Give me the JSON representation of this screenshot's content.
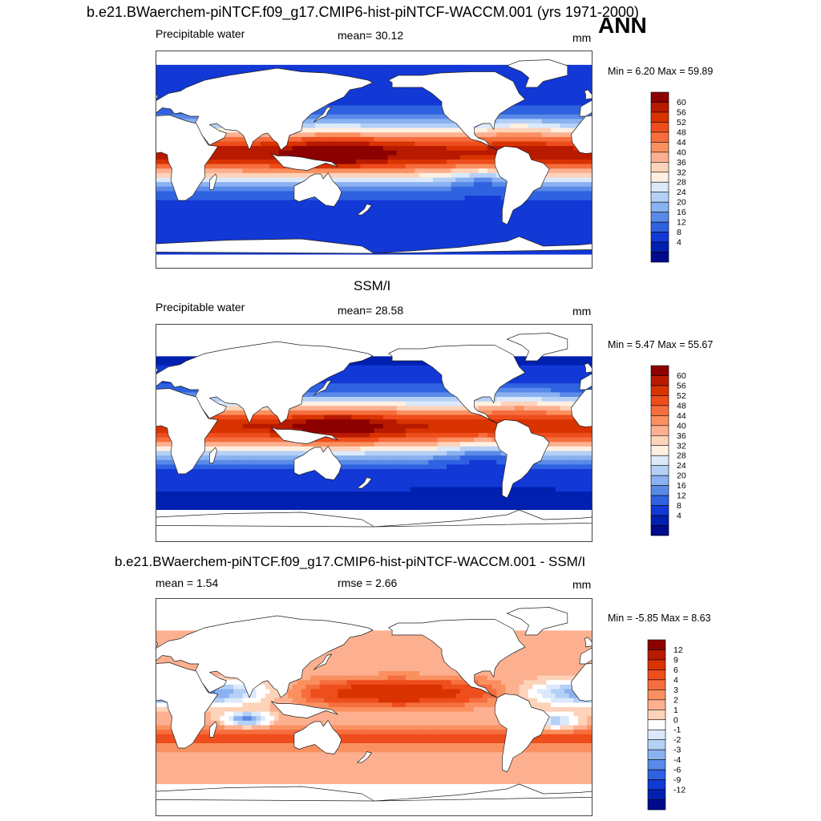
{
  "figure": {
    "title": "b.e21.BWaerchem-piNTCF.f09_g17.CMIP6-hist-piNTCF-WACCM.001 (yrs 1971-2000)",
    "season": "ANN"
  },
  "chart_data": [
    {
      "type": "heatmap",
      "panel_title": "",
      "variable": "Precipitable water",
      "stat_text": "mean=  30.12",
      "units": "mm",
      "minmax_text": "Min =   6.20 Max =  59.89",
      "min": 6.2,
      "max": 59.89,
      "mean": 30.12,
      "colorbar_levels": [
        "60",
        "56",
        "52",
        "48",
        "44",
        "40",
        "36",
        "32",
        "28",
        "24",
        "20",
        "16",
        "12",
        "8",
        "4"
      ],
      "colorbar_colors": [
        "#8c0000",
        "#b81a00",
        "#d93300",
        "#ee4d1c",
        "#f66e3e",
        "#fa9060",
        "#fcb090",
        "#fdd3b9",
        "#fff0e2",
        "#dbe9fb",
        "#b5d0f6",
        "#8ab1f0",
        "#5a8ae8",
        "#2f62e0",
        "#1238d6",
        "#0020b0",
        "#000a8c"
      ],
      "masked_land": false
    },
    {
      "type": "heatmap",
      "panel_title": "SSM/I",
      "variable": "Precipitable water",
      "stat_text": "mean=  28.58",
      "units": "mm",
      "minmax_text": "Min =   5.47 Max =  55.67",
      "min": 5.47,
      "max": 55.67,
      "mean": 28.58,
      "colorbar_levels": [
        "60",
        "56",
        "52",
        "48",
        "44",
        "40",
        "36",
        "32",
        "28",
        "24",
        "20",
        "16",
        "12",
        "8",
        "4"
      ],
      "colorbar_colors": [
        "#8c0000",
        "#b81a00",
        "#d93300",
        "#ee4d1c",
        "#f66e3e",
        "#fa9060",
        "#fcb090",
        "#fdd3b9",
        "#fff0e2",
        "#dbe9fb",
        "#b5d0f6",
        "#8ab1f0",
        "#5a8ae8",
        "#2f62e0",
        "#1238d6",
        "#0020b0",
        "#000a8c"
      ],
      "masked_land": true
    },
    {
      "type": "heatmap",
      "panel_title": "b.e21.BWaerchem-piNTCF.f09_g17.CMIP6-hist-piNTCF-WACCM.001 - SSM/I",
      "variable_text": "mean =   1.54",
      "stat_text": "rmse =   2.66",
      "units": "mm",
      "minmax_text": "Min =  -5.85 Max =   8.63",
      "min": -5.85,
      "max": 8.63,
      "mean": 1.54,
      "rmse": 2.66,
      "colorbar_levels": [
        "12",
        "9",
        "6",
        "4",
        "3",
        "2",
        "1",
        "0",
        "-1",
        "-2",
        "-3",
        "-4",
        "-6",
        "-9",
        "-12"
      ],
      "colorbar_colors": [
        "#8c0000",
        "#b81a00",
        "#d93300",
        "#ee4d1c",
        "#f66e3e",
        "#fa9060",
        "#fcb090",
        "#fdd3b9",
        "#ffffff",
        "#dbe9fb",
        "#b5d0f6",
        "#8ab1f0",
        "#5a8ae8",
        "#2f62e0",
        "#1238d6",
        "#0020b0",
        "#000a8c"
      ],
      "masked_land": true
    }
  ]
}
